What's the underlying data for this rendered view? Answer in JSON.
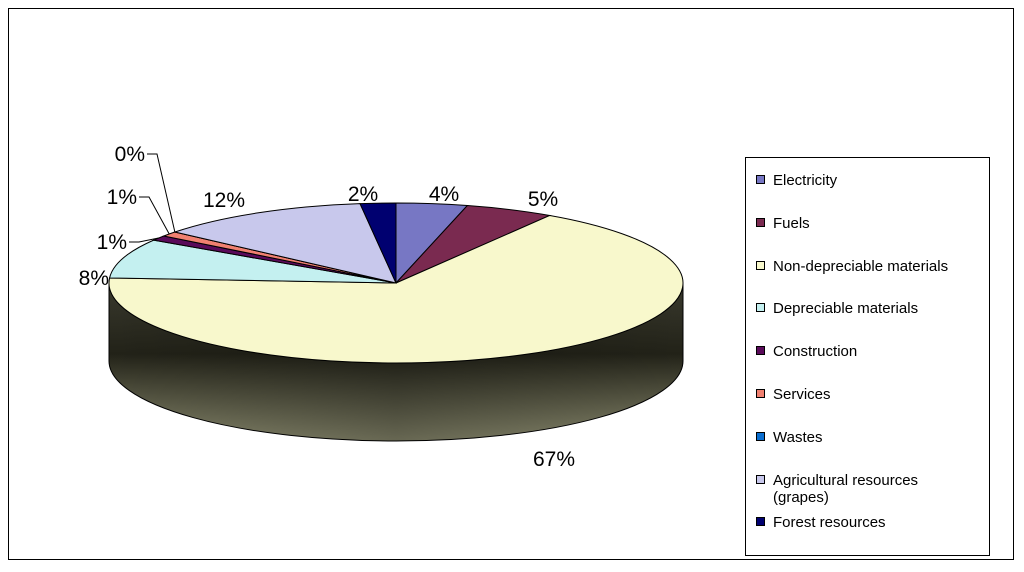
{
  "chart_data": {
    "type": "pie",
    "style": "3d",
    "title": "",
    "slices": [
      {
        "name": "Electricity",
        "value": 4,
        "label": "4%",
        "color": "#7777c4"
      },
      {
        "name": "Fuels",
        "value": 5,
        "label": "5%",
        "color": "#7a2a50"
      },
      {
        "name": "Non-depreciable materials",
        "value": 67,
        "label": "67%",
        "color": "#f8f8cc"
      },
      {
        "name": "Depreciable materials",
        "value": 8,
        "label": "8%",
        "color": "#c4f0f0"
      },
      {
        "name": "Construction",
        "value": 1,
        "label": "1%",
        "color": "#5a0a5a"
      },
      {
        "name": "Services",
        "value": 1,
        "label": "1%",
        "color": "#f08070"
      },
      {
        "name": "Wastes",
        "value": 0,
        "label": "0%",
        "color": "#0a6ed0"
      },
      {
        "name": "Agricultural resources\n(grapes)",
        "value": 12,
        "label": "12%",
        "color": "#c8c8ec"
      },
      {
        "name": "Forest resources",
        "value": 2,
        "label": "2%",
        "color": "#000070"
      }
    ],
    "legend_position": "right"
  }
}
